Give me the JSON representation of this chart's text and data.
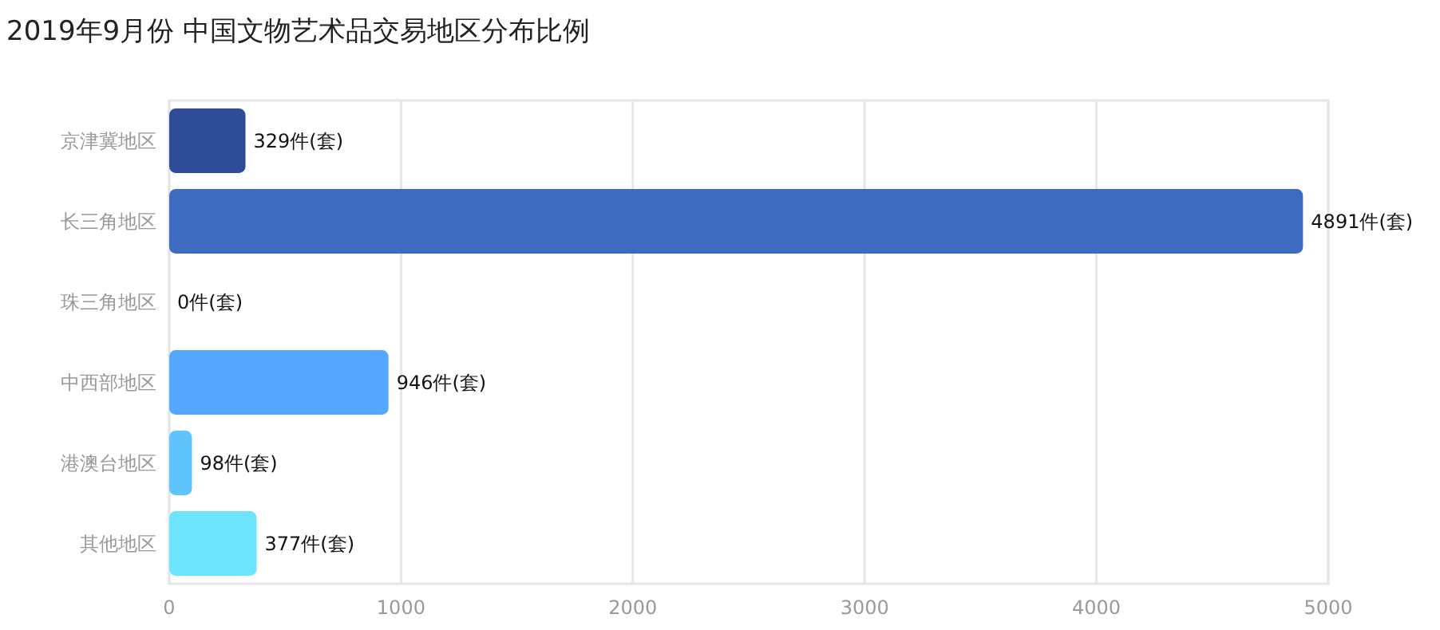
{
  "chart_data": {
    "type": "bar",
    "title": "2019年9月份 中国文物艺术品交易地区分布比例",
    "orientation": "horizontal",
    "categories": [
      "京津冀地区",
      "长三角地区",
      "珠三角地区",
      "中西部地区",
      "港澳台地区",
      "其他地区"
    ],
    "values": [
      329,
      4891,
      0,
      946,
      98,
      377
    ],
    "colors": [
      "#2e4d96",
      "#3d6bbf",
      "#4a8ae0",
      "#55a8fd",
      "#5ec4fb",
      "#6de4fd"
    ],
    "value_labels": [
      "329件(套)",
      "4891件(套)",
      "0件(套)",
      "946件(套)",
      "98件(套)",
      "377件(套)"
    ],
    "xlim": [
      0,
      5000
    ],
    "xticks": [
      0,
      1000,
      2000,
      3000,
      4000,
      5000
    ],
    "grid": "x"
  }
}
